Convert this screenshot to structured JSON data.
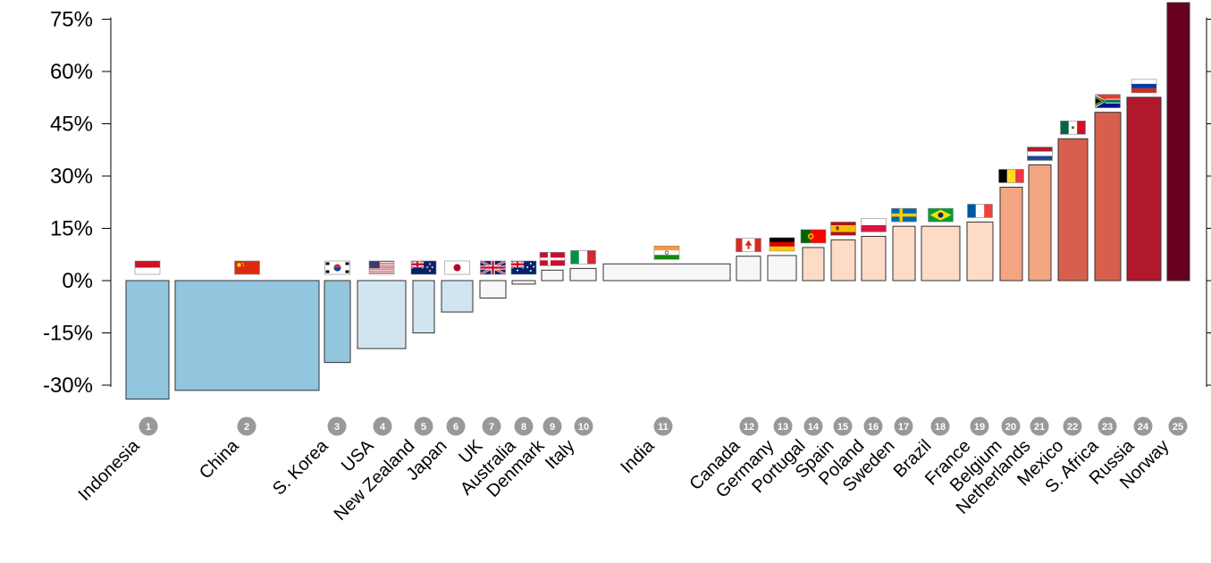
{
  "chart_data": {
    "type": "bar",
    "variable_width": true,
    "yticks": [
      "75%",
      "60%",
      "45%",
      "30%",
      "15%",
      "0%",
      "-15%",
      "-30%"
    ],
    "ytick_values": [
      75,
      60,
      45,
      30,
      15,
      0,
      -15,
      -30
    ],
    "ylim": [
      -34,
      80
    ],
    "grid": false,
    "bars": [
      {
        "rank": "1",
        "name": "Indonesia",
        "value": -34,
        "color": "#92c5de",
        "flag": "indonesia-flag"
      },
      {
        "rank": "2",
        "name": "China",
        "value": -31.5,
        "color": "#92c5de",
        "flag": "china-flag"
      },
      {
        "rank": "3",
        "name": "S. Korea",
        "value": -23.5,
        "color": "#92c5de",
        "flag": "south-korea-flag"
      },
      {
        "rank": "4",
        "name": "USA",
        "value": -19.5,
        "color": "#d1e5f0",
        "flag": "usa-flag"
      },
      {
        "rank": "5",
        "name": "New Zealand",
        "value": -15,
        "color": "#d1e5f0",
        "flag": "new-zealand-flag"
      },
      {
        "rank": "6",
        "name": "Japan",
        "value": -9,
        "color": "#d1e5f0",
        "flag": "japan-flag"
      },
      {
        "rank": "7",
        "name": "UK",
        "value": -5,
        "color": "#f7f7f7",
        "flag": "uk-flag"
      },
      {
        "rank": "8",
        "name": "Australia",
        "value": -1,
        "color": "#f7f7f7",
        "flag": "australia-flag"
      },
      {
        "rank": "9",
        "name": "Denmark",
        "value": 3,
        "color": "#f7f7f7",
        "flag": "denmark-flag"
      },
      {
        "rank": "10",
        "name": "Italy",
        "value": 3.5,
        "color": "#f7f7f7",
        "flag": "italy-flag"
      },
      {
        "rank": "11",
        "name": "India",
        "value": 4.8,
        "color": "#f7f7f7",
        "flag": "india-flag"
      },
      {
        "rank": "12",
        "name": "Canada",
        "value": 7,
        "color": "#f7f7f7",
        "flag": "canada-flag"
      },
      {
        "rank": "13",
        "name": "Germany",
        "value": 7.2,
        "color": "#f7f7f7",
        "flag": "germany-flag"
      },
      {
        "rank": "14",
        "name": "Portugal",
        "value": 9.5,
        "color": "#fddbc7",
        "flag": "portugal-flag"
      },
      {
        "rank": "15",
        "name": "Spain",
        "value": 11.7,
        "color": "#fddbc7",
        "flag": "spain-flag"
      },
      {
        "rank": "16",
        "name": "Poland",
        "value": 12.7,
        "color": "#fddbc7",
        "flag": "poland-flag"
      },
      {
        "rank": "17",
        "name": "Sweden",
        "value": 15.6,
        "color": "#fddbc7",
        "flag": "sweden-flag"
      },
      {
        "rank": "18",
        "name": "Brazil",
        "value": 15.6,
        "color": "#fddbc7",
        "flag": "brazil-flag"
      },
      {
        "rank": "19",
        "name": "France",
        "value": 16.8,
        "color": "#fddbc7",
        "flag": "france-flag"
      },
      {
        "rank": "20",
        "name": "Belgium",
        "value": 26.8,
        "color": "#f4a582",
        "flag": "belgium-flag"
      },
      {
        "rank": "21",
        "name": "Netherlands",
        "value": 33.2,
        "color": "#f4a582",
        "flag": "netherlands-flag"
      },
      {
        "rank": "22",
        "name": "Mexico",
        "value": 40.7,
        "color": "#d6604d",
        "flag": "mexico-flag"
      },
      {
        "rank": "23",
        "name": "S. Africa",
        "value": 48.3,
        "color": "#d6604d",
        "flag": "south-africa-flag"
      },
      {
        "rank": "24",
        "name": "Russia",
        "value": 52.6,
        "color": "#b2182b",
        "flag": "russia-flag"
      },
      {
        "rank": "25",
        "name": "Norway",
        "value": 80,
        "color": "#67001f",
        "flag": "norway-flag"
      }
    ]
  }
}
